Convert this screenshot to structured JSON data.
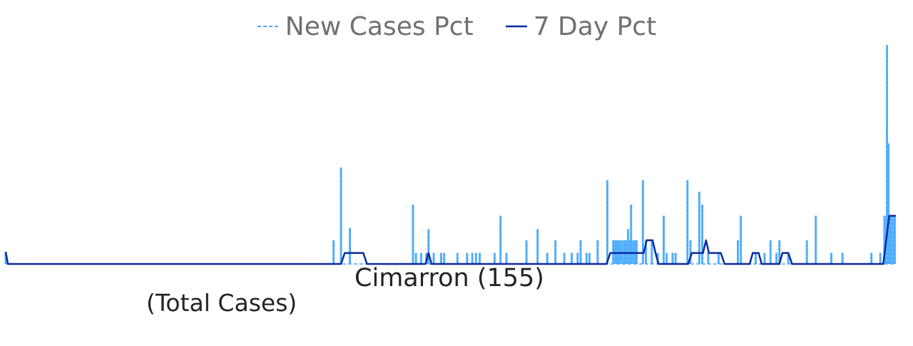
{
  "colors": {
    "new_cases_pct": "#4aa8f5",
    "new_cases_fill": "#5ab4ff",
    "seven_day_pct": "#0b2a9c"
  },
  "chart_data": {
    "type": "line",
    "title": "",
    "xlabel": "",
    "ylabel": "",
    "grid": false,
    "legend": "top-center",
    "ylim": [
      0,
      1
    ],
    "region_label": "Cimarron (155)",
    "metric_label": "(Total Cases)",
    "x_range": [
      0,
      1200
    ],
    "series": [
      {
        "name": "New Cases Pct",
        "style": "dashed-area",
        "spikes": [
          [
            0,
            0.055
          ],
          [
            442,
            0.108
          ],
          [
            452,
            0.44
          ],
          [
            464,
            0.164
          ],
          [
            549,
            0.271
          ],
          [
            553,
            0.05
          ],
          [
            560,
            0.05
          ],
          [
            567,
            0.05
          ],
          [
            570,
            0.159
          ],
          [
            577,
            0.05
          ],
          [
            587,
            0.05
          ],
          [
            591,
            0.05
          ],
          [
            609,
            0.05
          ],
          [
            622,
            0.05
          ],
          [
            629,
            0.05
          ],
          [
            634,
            0.05
          ],
          [
            639,
            0.05
          ],
          [
            659,
            0.05
          ],
          [
            667,
            0.22
          ],
          [
            675,
            0.05
          ],
          [
            702,
            0.108
          ],
          [
            717,
            0.159
          ],
          [
            730,
            0.05
          ],
          [
            741,
            0.108
          ],
          [
            753,
            0.05
          ],
          [
            763,
            0.05
          ],
          [
            771,
            0.05
          ],
          [
            775,
            0.108
          ],
          [
            783,
            0.05
          ],
          [
            787,
            0.05
          ],
          [
            798,
            0.108
          ],
          [
            811,
            0.382
          ],
          [
            819,
            0.108
          ],
          [
            823,
            0.108
          ],
          [
            827,
            0.108
          ],
          [
            835,
            0.108
          ],
          [
            839,
            0.159
          ],
          [
            843,
            0.271
          ],
          [
            849,
            0.108
          ],
          [
            859,
            0.382
          ],
          [
            863,
            0.108
          ],
          [
            871,
            0.108
          ],
          [
            879,
            0.05
          ],
          [
            887,
            0.22
          ],
          [
            891,
            0.05
          ],
          [
            899,
            0.05
          ],
          [
            903,
            0.05
          ],
          [
            919,
            0.382
          ],
          [
            923,
            0.108
          ],
          [
            935,
            0.33
          ],
          [
            939,
            0.271
          ],
          [
            947,
            0.05
          ],
          [
            961,
            0.05
          ],
          [
            987,
            0.108
          ],
          [
            991,
            0.22
          ],
          [
            1011,
            0.05
          ],
          [
            1023,
            0.05
          ],
          [
            1031,
            0.108
          ],
          [
            1039,
            0.05
          ],
          [
            1043,
            0.108
          ],
          [
            1055,
            0.05
          ],
          [
            1080,
            0.108
          ],
          [
            1092,
            0.22
          ],
          [
            1113,
            0.05
          ],
          [
            1128,
            0.05
          ],
          [
            1167,
            0.05
          ],
          [
            1179,
            0.05
          ],
          [
            1186,
            0.13
          ],
          [
            1188,
            1.0
          ],
          [
            1190,
            0.55
          ],
          [
            1193,
            0.22
          ],
          [
            1198,
            0.22
          ]
        ],
        "plateaus": [
          [
            [
              818,
              852
            ],
            0.108
          ],
          [
            [
              1183,
              1200
            ],
            0.22
          ]
        ]
      },
      {
        "name": "7 Day Pct",
        "style": "solid",
        "points": [
          [
            0,
            0.055
          ],
          [
            3,
            0
          ],
          [
            452,
            0
          ],
          [
            457,
            0.05
          ],
          [
            482,
            0.05
          ],
          [
            487,
            0
          ],
          [
            566,
            0
          ],
          [
            570,
            0.05
          ],
          [
            574,
            0
          ],
          [
            810,
            0
          ],
          [
            815,
            0.05
          ],
          [
            860,
            0.05
          ],
          [
            864,
            0.108
          ],
          [
            872,
            0.108
          ],
          [
            876,
            0.05
          ],
          [
            880,
            0
          ],
          [
            920,
            0
          ],
          [
            925,
            0.05
          ],
          [
            940,
            0.05
          ],
          [
            944,
            0.108
          ],
          [
            948,
            0.05
          ],
          [
            964,
            0.05
          ],
          [
            969,
            0
          ],
          [
            1003,
            0
          ],
          [
            1007,
            0.05
          ],
          [
            1015,
            0.05
          ],
          [
            1019,
            0
          ],
          [
            1043,
            0
          ],
          [
            1047,
            0.05
          ],
          [
            1055,
            0.05
          ],
          [
            1060,
            0
          ],
          [
            1183,
            0
          ],
          [
            1191,
            0.22
          ],
          [
            1200,
            0.22
          ]
        ]
      }
    ]
  }
}
